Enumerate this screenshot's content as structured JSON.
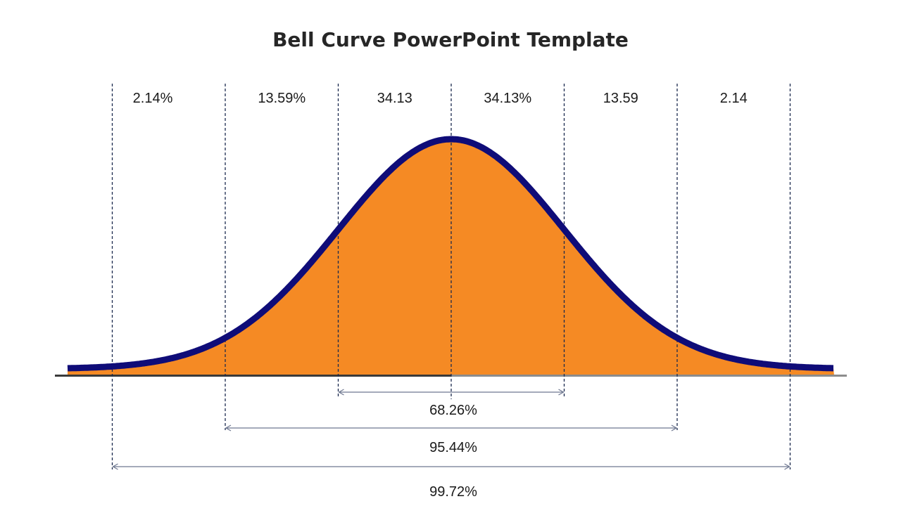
{
  "title": "Bell Curve PowerPoint Template",
  "colors": {
    "fill": "#F58A24",
    "curve": "#0F0C78",
    "divider": "#1B2A4E",
    "bracket": "#6E7790",
    "baseline_left": "#3A3A3A",
    "baseline_right": "#8C8C8C",
    "text": "#1A1A1A"
  },
  "segment_labels": [
    "2.14%",
    "13.59%",
    "34.13",
    "34.13%",
    "13.59",
    "2.14"
  ],
  "ranges": [
    {
      "label": "68.26%",
      "from_sigma": -1,
      "to_sigma": 1
    },
    {
      "label": "95.44%",
      "from_sigma": -2,
      "to_sigma": 2
    },
    {
      "label": "99.72%",
      "from_sigma": -3,
      "to_sigma": 3
    }
  ]
}
